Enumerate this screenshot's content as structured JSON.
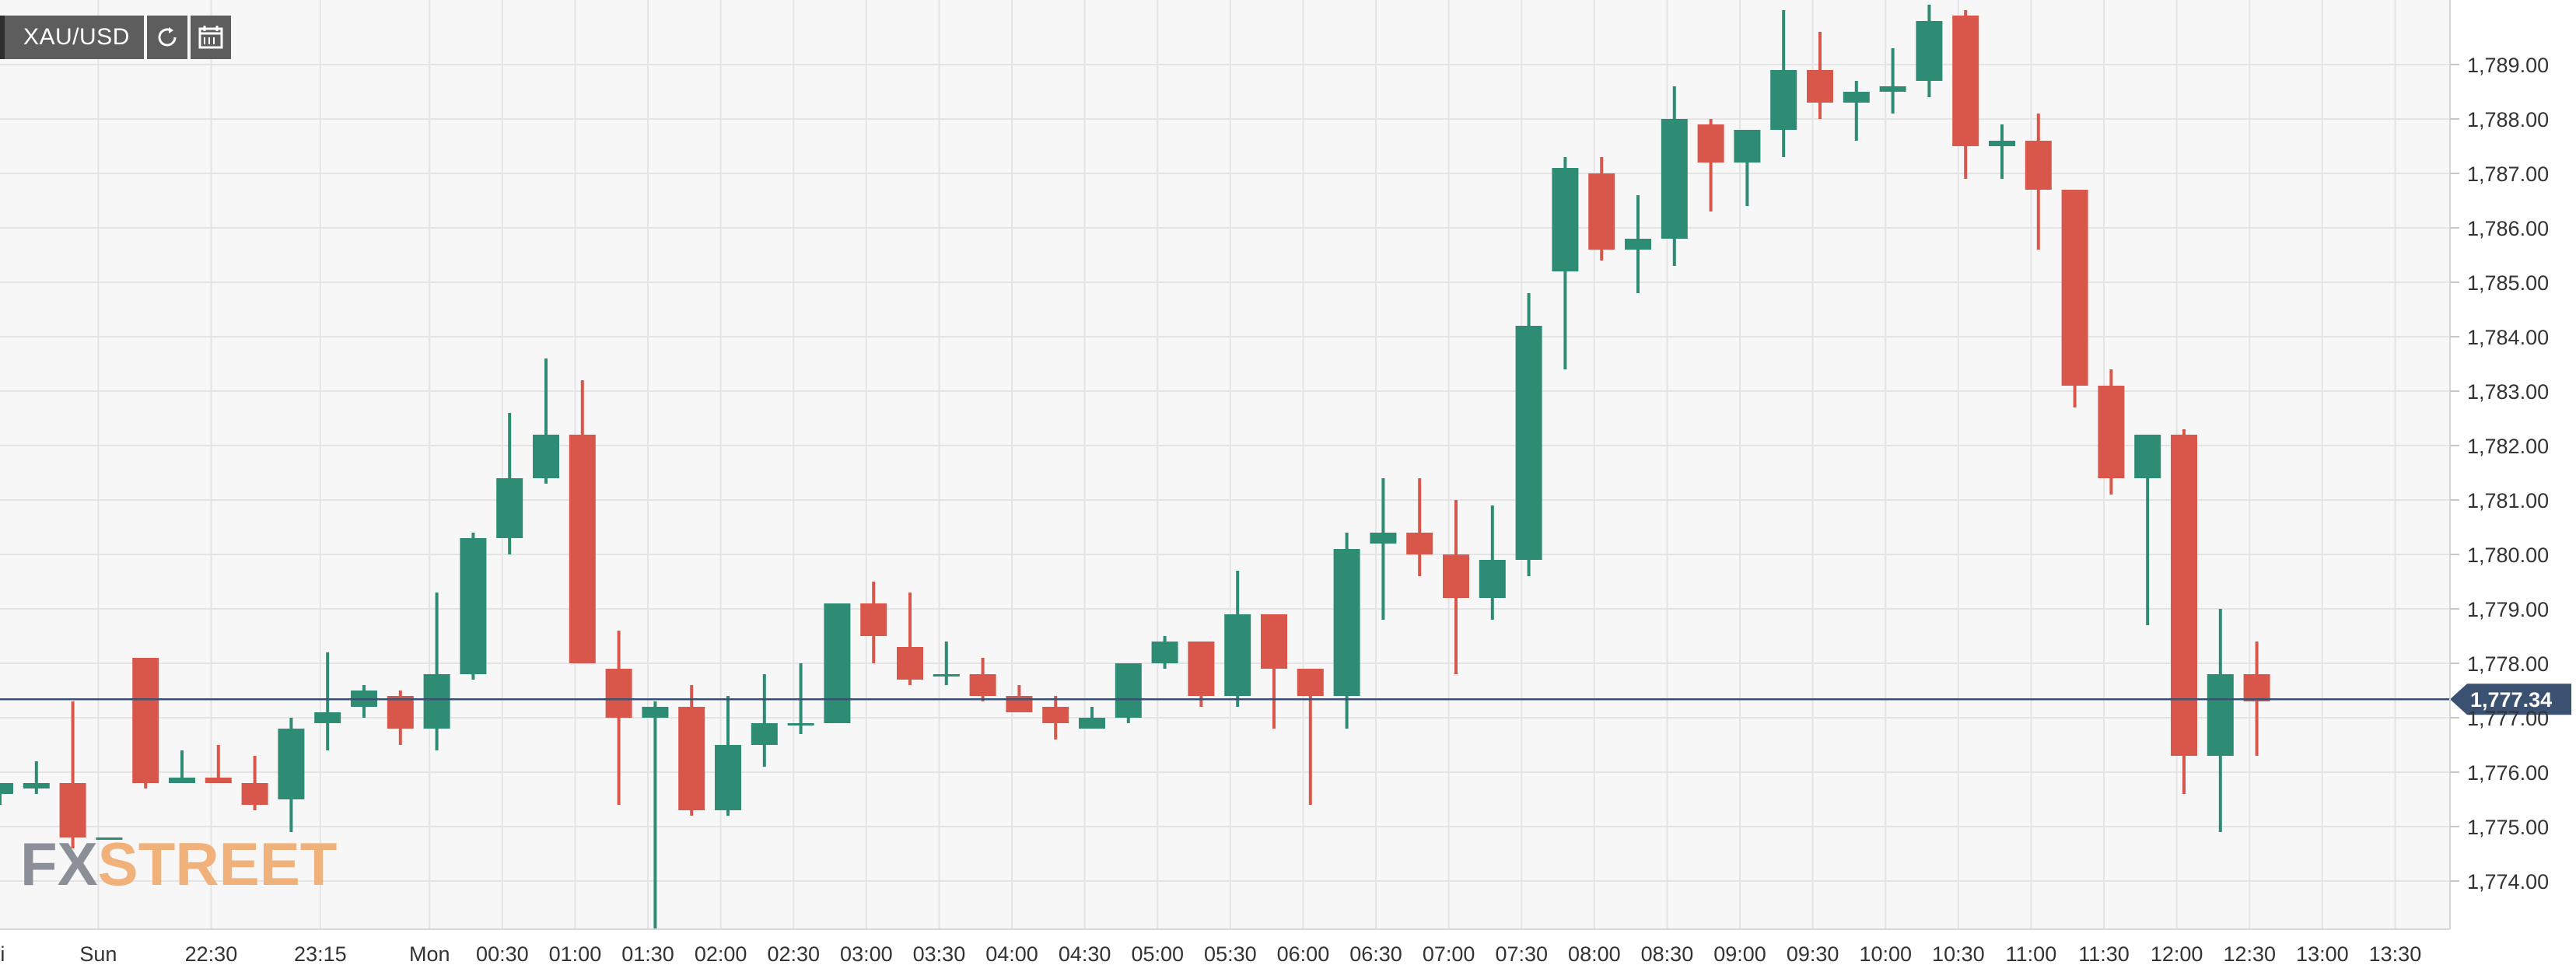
{
  "toolbar": {
    "symbol": "XAU/USD",
    "refresh_icon": "refresh-icon",
    "calendar_icon": "calendar-icon"
  },
  "logo": {
    "part1": "FX",
    "part2": "STREET"
  },
  "colors": {
    "up": "#2e8b74",
    "down": "#d9574a",
    "last_price": "#3a5172",
    "logo_gray": "#8b8f98",
    "logo_orange": "#f0b27a"
  },
  "chart_data": {
    "type": "candlestick",
    "symbol": "XAU/USD",
    "last_price": 1777.34,
    "last_price_label": "1,777.34",
    "ylim": [
      1773.2,
      1789.9
    ],
    "y_ticks": [
      {
        "value": 1789,
        "label": "1,789.00"
      },
      {
        "value": 1788,
        "label": "1,788.00"
      },
      {
        "value": 1787,
        "label": "1,787.00"
      },
      {
        "value": 1786,
        "label": "1,786.00"
      },
      {
        "value": 1785,
        "label": "1,785.00"
      },
      {
        "value": 1784,
        "label": "1,784.00"
      },
      {
        "value": 1783,
        "label": "1,783.00"
      },
      {
        "value": 1782,
        "label": "1,782.00"
      },
      {
        "value": 1781,
        "label": "1,781.00"
      },
      {
        "value": 1780,
        "label": "1,780.00"
      },
      {
        "value": 1779,
        "label": "1,779.00"
      },
      {
        "value": 1778,
        "label": "1,778.00"
      },
      {
        "value": 1777,
        "label": "1,777.00"
      },
      {
        "value": 1776,
        "label": "1,776.00"
      },
      {
        "value": 1775,
        "label": "1,775.00"
      },
      {
        "value": 1774,
        "label": "1,774.00"
      }
    ],
    "x_ticks": [
      {
        "index": -0.2,
        "label": "Fri"
      },
      {
        "index": 2.7,
        "label": "Sun"
      },
      {
        "index": 5.8,
        "label": "22:30"
      },
      {
        "index": 8.8,
        "label": "23:15"
      },
      {
        "index": 11.8,
        "label": "Mon"
      },
      {
        "index": 13.8,
        "label": "00:30"
      },
      {
        "index": 15.8,
        "label": "01:00"
      },
      {
        "index": 17.8,
        "label": "01:30"
      },
      {
        "index": 19.8,
        "label": "02:00"
      },
      {
        "index": 21.8,
        "label": "02:30"
      },
      {
        "index": 23.8,
        "label": "03:00"
      },
      {
        "index": 25.8,
        "label": "03:30"
      },
      {
        "index": 27.8,
        "label": "04:00"
      },
      {
        "index": 29.8,
        "label": "04:30"
      },
      {
        "index": 31.8,
        "label": "05:00"
      },
      {
        "index": 33.8,
        "label": "05:30"
      },
      {
        "index": 35.8,
        "label": "06:00"
      },
      {
        "index": 37.8,
        "label": "06:30"
      },
      {
        "index": 39.8,
        "label": "07:00"
      },
      {
        "index": 41.8,
        "label": "07:30"
      },
      {
        "index": 43.8,
        "label": "08:00"
      },
      {
        "index": 45.8,
        "label": "08:30"
      },
      {
        "index": 47.8,
        "label": "09:00"
      },
      {
        "index": 49.8,
        "label": "09:30"
      },
      {
        "index": 51.8,
        "label": "10:00"
      },
      {
        "index": 53.8,
        "label": "10:30"
      },
      {
        "index": 55.8,
        "label": "11:00"
      },
      {
        "index": 57.8,
        "label": "11:30"
      },
      {
        "index": 59.8,
        "label": "12:00"
      },
      {
        "index": 61.8,
        "label": "12:30"
      },
      {
        "index": 63.8,
        "label": "13:00"
      },
      {
        "index": 65.8,
        "label": "13:30"
      }
    ],
    "candles": [
      {
        "o": 1775.6,
        "h": 1775.8,
        "l": 1775.4,
        "c": 1775.8
      },
      {
        "o": 1775.7,
        "h": 1776.2,
        "l": 1775.6,
        "c": 1775.8
      },
      {
        "o": 1775.8,
        "h": 1777.3,
        "l": 1774.6,
        "c": 1774.8
      },
      {
        "o": 1774.8,
        "h": 1774.8,
        "l": 1774.8,
        "c": 1774.8
      },
      {
        "o": 1778.1,
        "h": 1778.1,
        "l": 1775.7,
        "c": 1775.8
      },
      {
        "o": 1775.8,
        "h": 1776.4,
        "l": 1775.8,
        "c": 1775.9
      },
      {
        "o": 1775.9,
        "h": 1776.5,
        "l": 1775.8,
        "c": 1775.8
      },
      {
        "o": 1775.8,
        "h": 1776.3,
        "l": 1775.3,
        "c": 1775.4
      },
      {
        "o": 1775.5,
        "h": 1777.0,
        "l": 1774.9,
        "c": 1776.8
      },
      {
        "o": 1776.9,
        "h": 1778.2,
        "l": 1776.4,
        "c": 1777.1
      },
      {
        "o": 1777.2,
        "h": 1777.6,
        "l": 1777.0,
        "c": 1777.5
      },
      {
        "o": 1777.4,
        "h": 1777.5,
        "l": 1776.5,
        "c": 1776.8
      },
      {
        "o": 1776.8,
        "h": 1779.3,
        "l": 1776.4,
        "c": 1777.8
      },
      {
        "o": 1777.8,
        "h": 1780.4,
        "l": 1777.7,
        "c": 1780.3
      },
      {
        "o": 1780.3,
        "h": 1782.6,
        "l": 1780.0,
        "c": 1781.4
      },
      {
        "o": 1781.4,
        "h": 1783.6,
        "l": 1781.3,
        "c": 1782.2
      },
      {
        "o": 1782.2,
        "h": 1783.2,
        "l": 1778.0,
        "c": 1778.0
      },
      {
        "o": 1777.9,
        "h": 1778.6,
        "l": 1775.4,
        "c": 1777.0
      },
      {
        "o": 1777.0,
        "h": 1777.3,
        "l": 1773.1,
        "c": 1777.2
      },
      {
        "o": 1777.2,
        "h": 1777.6,
        "l": 1775.2,
        "c": 1775.3
      },
      {
        "o": 1775.3,
        "h": 1777.4,
        "l": 1775.2,
        "c": 1776.5
      },
      {
        "o": 1776.5,
        "h": 1777.8,
        "l": 1776.1,
        "c": 1776.9
      },
      {
        "o": 1776.9,
        "h": 1778.0,
        "l": 1776.7,
        "c": 1776.9
      },
      {
        "o": 1776.9,
        "h": 1779.1,
        "l": 1776.9,
        "c": 1779.1
      },
      {
        "o": 1779.1,
        "h": 1779.5,
        "l": 1778.0,
        "c": 1778.5
      },
      {
        "o": 1778.3,
        "h": 1779.3,
        "l": 1777.6,
        "c": 1777.7
      },
      {
        "o": 1777.8,
        "h": 1778.4,
        "l": 1777.6,
        "c": 1777.8
      },
      {
        "o": 1777.8,
        "h": 1778.1,
        "l": 1777.3,
        "c": 1777.4
      },
      {
        "o": 1777.4,
        "h": 1777.6,
        "l": 1777.1,
        "c": 1777.1
      },
      {
        "o": 1777.2,
        "h": 1777.4,
        "l": 1776.6,
        "c": 1776.9
      },
      {
        "o": 1776.8,
        "h": 1777.2,
        "l": 1776.8,
        "c": 1777.0
      },
      {
        "o": 1777.0,
        "h": 1778.0,
        "l": 1776.9,
        "c": 1778.0
      },
      {
        "o": 1778.0,
        "h": 1778.5,
        "l": 1777.9,
        "c": 1778.4
      },
      {
        "o": 1778.4,
        "h": 1778.4,
        "l": 1777.2,
        "c": 1777.4
      },
      {
        "o": 1777.4,
        "h": 1779.7,
        "l": 1777.2,
        "c": 1778.9
      },
      {
        "o": 1778.9,
        "h": 1778.9,
        "l": 1776.8,
        "c": 1777.9
      },
      {
        "o": 1777.9,
        "h": 1777.9,
        "l": 1775.4,
        "c": 1777.4
      },
      {
        "o": 1777.4,
        "h": 1780.4,
        "l": 1776.8,
        "c": 1780.1
      },
      {
        "o": 1780.2,
        "h": 1781.4,
        "l": 1778.8,
        "c": 1780.4
      },
      {
        "o": 1780.4,
        "h": 1781.4,
        "l": 1779.6,
        "c": 1780.0
      },
      {
        "o": 1780.0,
        "h": 1781.0,
        "l": 1777.8,
        "c": 1779.2
      },
      {
        "o": 1779.2,
        "h": 1780.9,
        "l": 1778.8,
        "c": 1779.9
      },
      {
        "o": 1779.9,
        "h": 1784.8,
        "l": 1779.6,
        "c": 1784.2
      },
      {
        "o": 1785.2,
        "h": 1787.3,
        "l": 1783.4,
        "c": 1787.1
      },
      {
        "o": 1787.0,
        "h": 1787.3,
        "l": 1785.4,
        "c": 1785.6
      },
      {
        "o": 1785.6,
        "h": 1786.6,
        "l": 1784.8,
        "c": 1785.8
      },
      {
        "o": 1785.8,
        "h": 1788.6,
        "l": 1785.3,
        "c": 1788.0
      },
      {
        "o": 1787.9,
        "h": 1788.0,
        "l": 1786.3,
        "c": 1787.2
      },
      {
        "o": 1787.2,
        "h": 1787.8,
        "l": 1786.4,
        "c": 1787.8
      },
      {
        "o": 1787.8,
        "h": 1790.0,
        "l": 1787.3,
        "c": 1788.9
      },
      {
        "o": 1788.9,
        "h": 1789.6,
        "l": 1788.0,
        "c": 1788.3
      },
      {
        "o": 1788.3,
        "h": 1788.7,
        "l": 1787.6,
        "c": 1788.5
      },
      {
        "o": 1788.5,
        "h": 1789.3,
        "l": 1788.1,
        "c": 1788.6
      },
      {
        "o": 1788.7,
        "h": 1790.1,
        "l": 1788.4,
        "c": 1789.8
      },
      {
        "o": 1789.9,
        "h": 1790.0,
        "l": 1786.9,
        "c": 1787.5
      },
      {
        "o": 1787.5,
        "h": 1787.9,
        "l": 1786.9,
        "c": 1787.6
      },
      {
        "o": 1787.6,
        "h": 1788.1,
        "l": 1785.6,
        "c": 1786.7
      },
      {
        "o": 1786.7,
        "h": 1786.7,
        "l": 1782.7,
        "c": 1783.1
      },
      {
        "o": 1783.1,
        "h": 1783.4,
        "l": 1781.1,
        "c": 1781.4
      },
      {
        "o": 1781.4,
        "h": 1782.2,
        "l": 1778.7,
        "c": 1782.2
      },
      {
        "o": 1782.2,
        "h": 1782.3,
        "l": 1775.6,
        "c": 1776.3
      },
      {
        "o": 1776.3,
        "h": 1779.0,
        "l": 1774.9,
        "c": 1777.8
      },
      {
        "o": 1777.8,
        "h": 1778.4,
        "l": 1776.3,
        "c": 1777.3
      }
    ]
  }
}
